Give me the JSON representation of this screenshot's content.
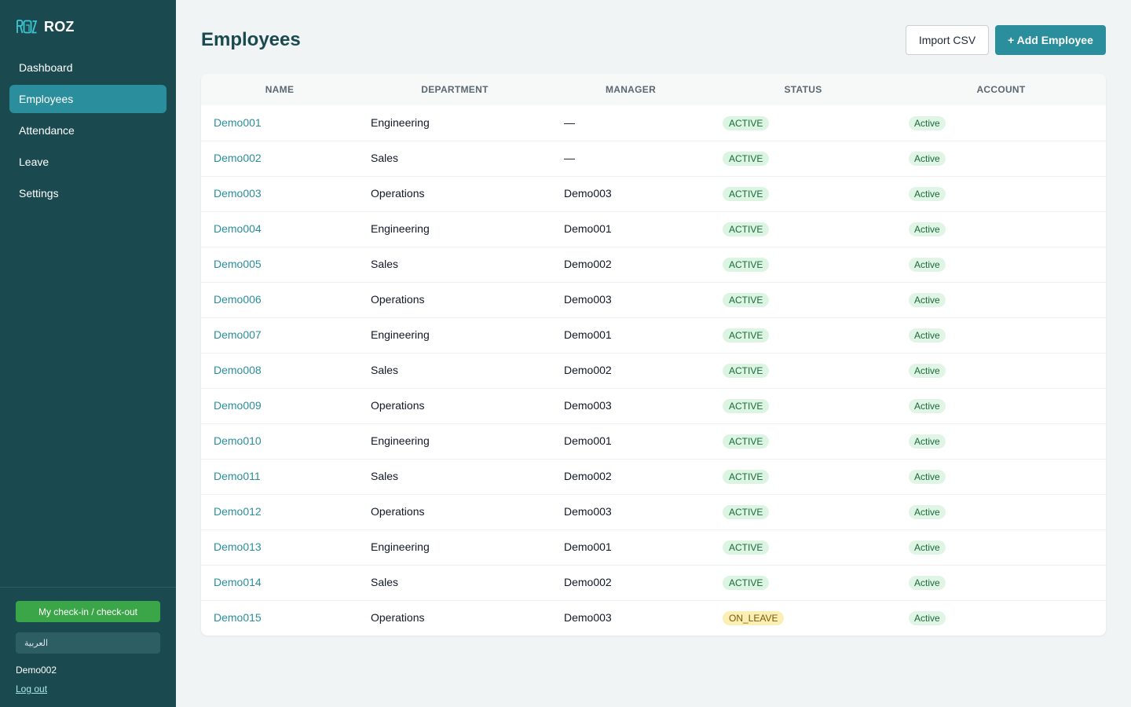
{
  "app": {
    "name": "ROZ"
  },
  "sidebar": {
    "items": [
      {
        "label": "Dashboard",
        "active": false
      },
      {
        "label": "Employees",
        "active": true
      },
      {
        "label": "Attendance",
        "active": false
      },
      {
        "label": "Leave",
        "active": false
      },
      {
        "label": "Settings",
        "active": false
      }
    ],
    "checkin_label": "My check-in / check-out",
    "language_label": "العربية",
    "user_name": "Demo002",
    "logout_label": "Log out"
  },
  "page": {
    "title": "Employees",
    "import_label": "Import CSV",
    "add_label": "+ Add Employee"
  },
  "table": {
    "columns": [
      "NAME",
      "DEPARTMENT",
      "MANAGER",
      "STATUS",
      "ACCOUNT"
    ],
    "rows": [
      {
        "name": "Demo001",
        "department": "Engineering",
        "manager": "—",
        "status": "ACTIVE",
        "account": "Active"
      },
      {
        "name": "Demo002",
        "department": "Sales",
        "manager": "—",
        "status": "ACTIVE",
        "account": "Active"
      },
      {
        "name": "Demo003",
        "department": "Operations",
        "manager": "Demo003",
        "status": "ACTIVE",
        "account": "Active"
      },
      {
        "name": "Demo004",
        "department": "Engineering",
        "manager": "Demo001",
        "status": "ACTIVE",
        "account": "Active"
      },
      {
        "name": "Demo005",
        "department": "Sales",
        "manager": "Demo002",
        "status": "ACTIVE",
        "account": "Active"
      },
      {
        "name": "Demo006",
        "department": "Operations",
        "manager": "Demo003",
        "status": "ACTIVE",
        "account": "Active"
      },
      {
        "name": "Demo007",
        "department": "Engineering",
        "manager": "Demo001",
        "status": "ACTIVE",
        "account": "Active"
      },
      {
        "name": "Demo008",
        "department": "Sales",
        "manager": "Demo002",
        "status": "ACTIVE",
        "account": "Active"
      },
      {
        "name": "Demo009",
        "department": "Operations",
        "manager": "Demo003",
        "status": "ACTIVE",
        "account": "Active"
      },
      {
        "name": "Demo010",
        "department": "Engineering",
        "manager": "Demo001",
        "status": "ACTIVE",
        "account": "Active"
      },
      {
        "name": "Demo011",
        "department": "Sales",
        "manager": "Demo002",
        "status": "ACTIVE",
        "account": "Active"
      },
      {
        "name": "Demo012",
        "department": "Operations",
        "manager": "Demo003",
        "status": "ACTIVE",
        "account": "Active"
      },
      {
        "name": "Demo013",
        "department": "Engineering",
        "manager": "Demo001",
        "status": "ACTIVE",
        "account": "Active"
      },
      {
        "name": "Demo014",
        "department": "Sales",
        "manager": "Demo002",
        "status": "ACTIVE",
        "account": "Active"
      },
      {
        "name": "Demo015",
        "department": "Operations",
        "manager": "Demo003",
        "status": "ON_LEAVE",
        "account": "Active"
      }
    ]
  },
  "colors": {
    "sidebar_bg": "#1a4a50",
    "accent": "#2b8e9c",
    "checkin_green": "#3aa648",
    "active_badge_bg": "#dcf5e3",
    "leave_badge_bg": "#fcefb5"
  },
  "icons": {
    "logo": "roz-logo-icon"
  }
}
